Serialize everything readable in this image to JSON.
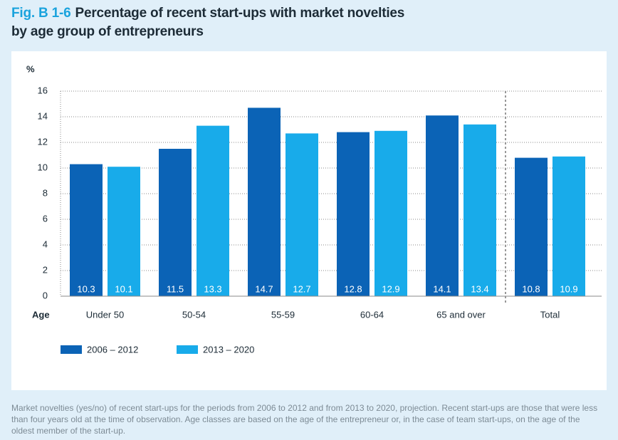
{
  "chart_data": {
    "type": "bar",
    "figure_label": "Fig. B 1-6",
    "title": [
      "Percentage of recent start-ups with market novelties",
      "by age group of entrepreneurs"
    ],
    "y_label": "%",
    "x_label": "Age",
    "categories": [
      "Under 50",
      "50-54",
      "55-59",
      "60-64",
      "65 and over",
      "Total"
    ],
    "series": [
      {
        "name": "2006 – 2012",
        "color": "#0b63b6",
        "values": [
          10.3,
          11.5,
          14.7,
          12.8,
          14.1,
          10.8
        ]
      },
      {
        "name": "2013 – 2020",
        "color": "#18abea",
        "values": [
          10.1,
          13.3,
          12.7,
          12.9,
          13.4,
          10.9
        ]
      }
    ],
    "ylim": [
      0,
      16
    ],
    "yticks": [
      0,
      2,
      4,
      6,
      8,
      10,
      12,
      14,
      16
    ],
    "grid": true,
    "note": "Market novelties (yes/no) of recent start-ups for the periods from 2006 to 2012 and from 2013 to 2020, projection. Recent start-ups are those that were less than four years old at the time of observation. Age classes are based on the age of the entrepreneur or, in the case of team start-ups, on the age of the oldest member of the start-up."
  }
}
